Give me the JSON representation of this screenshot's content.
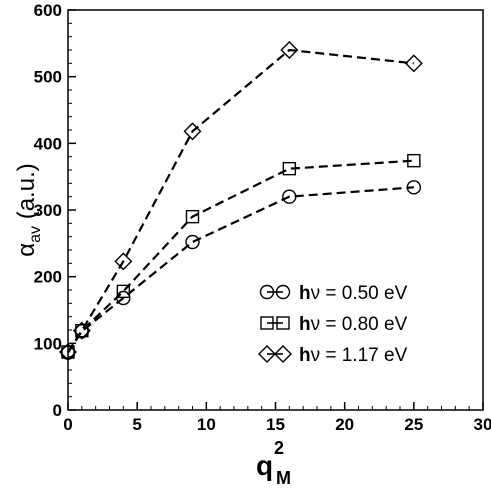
{
  "chart_data": {
    "type": "line",
    "xlabel_base": "q",
    "xlabel_sup": "2",
    "xlabel_sub": "M",
    "ylabel_base": "α",
    "ylabel_sub": "av",
    "ylabel_unit": " (a.u.)",
    "xlim": [
      0,
      30
    ],
    "ylim": [
      0,
      600
    ],
    "xticks": [
      0,
      5,
      10,
      15,
      20,
      25,
      30
    ],
    "yticks": [
      0,
      100,
      200,
      300,
      400,
      500,
      600
    ],
    "xtick_labels": [
      "0",
      "5",
      "10",
      "15",
      "20",
      "25",
      "30"
    ],
    "ytick_labels": [
      "0",
      "100",
      "200",
      "300",
      "400",
      "500",
      "600"
    ],
    "legend_position": "lower-right",
    "series": [
      {
        "name": "hν = 0.50 eV",
        "legend_bold": "h",
        "legend_rest": "ν = 0.50 eV",
        "marker": "circle",
        "x": [
          0,
          1,
          4,
          9,
          16,
          25
        ],
        "y": [
          86,
          118,
          168,
          252,
          320,
          334
        ]
      },
      {
        "name": "hν = 0.80 eV",
        "legend_bold": "h",
        "legend_rest": "ν = 0.80 eV",
        "marker": "square",
        "x": [
          0,
          1,
          4,
          9,
          16,
          25
        ],
        "y": [
          87,
          119,
          178,
          290,
          362,
          374
        ]
      },
      {
        "name": "hν = 1.17 eV",
        "legend_bold": "h",
        "legend_rest": "ν = 1.17 eV",
        "marker": "diamond",
        "x": [
          0,
          1,
          4,
          9,
          16,
          25
        ],
        "y": [
          87,
          119,
          223,
          418,
          540,
          520
        ]
      }
    ]
  }
}
